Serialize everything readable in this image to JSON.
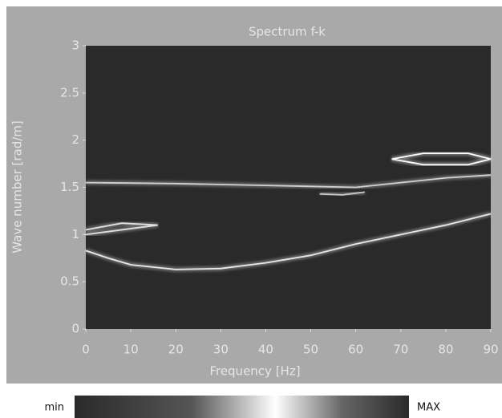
{
  "chart_data": {
    "type": "spectrum",
    "title": "Spectrum f-k",
    "x_label": "Frequency [Hz]",
    "y_label": "Wave number [rad/m]",
    "xlim": [
      0,
      90
    ],
    "ylim": [
      0,
      3
    ],
    "xticks": [
      0,
      10,
      20,
      30,
      40,
      50,
      60,
      70,
      80,
      90
    ],
    "yticks": [
      0,
      0.5,
      1,
      1.5,
      2,
      2.5,
      3
    ],
    "series": [
      {
        "color": "#e8e8e8",
        "x": [
          0,
          5,
          10,
          20,
          30,
          40,
          50,
          60,
          70,
          80,
          90
        ],
        "values": [
          0.83,
          0.75,
          0.68,
          0.63,
          0.64,
          0.7,
          0.78,
          0.9,
          1.0,
          1.1,
          1.22
        ]
      },
      {
        "color": "#d0d0d0",
        "x": [
          0,
          20,
          40,
          60,
          70,
          80,
          90
        ],
        "values": [
          1.55,
          1.54,
          1.52,
          1.5,
          1.55,
          1.6,
          1.63
        ]
      },
      {
        "color": "#ffffff",
        "x": [
          68,
          75,
          85,
          90,
          85,
          75,
          68
        ],
        "values": [
          1.8,
          1.86,
          1.86,
          1.8,
          1.74,
          1.74,
          1.8
        ]
      },
      {
        "color": "#e0e0e0",
        "x": [
          0,
          8,
          16,
          8,
          0
        ],
        "values": [
          1.05,
          1.12,
          1.1,
          1.05,
          1.0
        ]
      },
      {
        "color": "#c8c8c8",
        "x": [
          52,
          57,
          62
        ],
        "values": [
          1.43,
          1.42,
          1.45
        ]
      }
    ],
    "colorbar": {
      "min_label": "min",
      "max_label": "MAX"
    }
  }
}
